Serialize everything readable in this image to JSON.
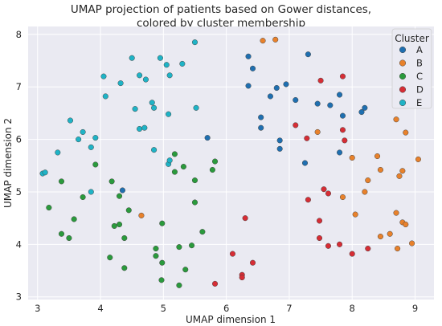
{
  "chart_data": {
    "type": "scatter",
    "title_lines": [
      "UMAP projection of patients based on Gower distances,",
      "colored by cluster membership"
    ],
    "xlabel": "UMAP dimension 1",
    "ylabel": "UMAP dimension 2",
    "xlim": [
      2.85,
      9.3
    ],
    "ylim": [
      2.95,
      8.15
    ],
    "xticks": [
      "3",
      "4",
      "5",
      "6",
      "7",
      "8",
      "9"
    ],
    "yticks": [
      "3",
      "4",
      "5",
      "6",
      "7",
      "8"
    ],
    "grid": true,
    "legend": {
      "title": "Cluster",
      "placement": "top-right"
    },
    "series": [
      {
        "name": "A",
        "color": "#1f6fb0",
        "points": [
          [
            6.35,
            7.58
          ],
          [
            6.42,
            7.35
          ],
          [
            6.35,
            7.02
          ],
          [
            6.55,
            6.42
          ],
          [
            6.55,
            6.22
          ],
          [
            6.7,
            6.82
          ],
          [
            6.8,
            6.98
          ],
          [
            6.95,
            7.05
          ],
          [
            7.1,
            6.75
          ],
          [
            7.3,
            7.62
          ],
          [
            7.45,
            6.68
          ],
          [
            7.65,
            6.65
          ],
          [
            7.8,
            6.85
          ],
          [
            7.85,
            6.45
          ],
          [
            8.15,
            6.52
          ],
          [
            8.2,
            6.6
          ],
          [
            6.85,
            5.98
          ],
          [
            6.85,
            5.82
          ],
          [
            7.25,
            5.55
          ],
          [
            7.8,
            5.75
          ],
          [
            5.7,
            6.03
          ],
          [
            4.35,
            5.03
          ]
        ]
      },
      {
        "name": "B",
        "color": "#e8812b",
        "points": [
          [
            6.58,
            7.88
          ],
          [
            6.78,
            7.9
          ],
          [
            7.45,
            6.14
          ],
          [
            8.0,
            5.65
          ],
          [
            8.4,
            5.68
          ],
          [
            8.45,
            5.42
          ],
          [
            8.7,
            6.38
          ],
          [
            8.85,
            6.13
          ],
          [
            9.05,
            5.62
          ],
          [
            8.75,
            5.3
          ],
          [
            8.8,
            5.4
          ],
          [
            8.25,
            5.22
          ],
          [
            8.2,
            5.0
          ],
          [
            7.85,
            4.9
          ],
          [
            8.05,
            4.57
          ],
          [
            8.7,
            4.6
          ],
          [
            8.8,
            4.42
          ],
          [
            8.85,
            4.38
          ],
          [
            8.95,
            4.02
          ],
          [
            8.6,
            4.2
          ],
          [
            8.45,
            4.15
          ],
          [
            8.72,
            3.92
          ],
          [
            4.65,
            4.55
          ]
        ]
      },
      {
        "name": "C",
        "color": "#2a9a3c",
        "points": [
          [
            3.38,
            5.2
          ],
          [
            3.18,
            4.7
          ],
          [
            3.58,
            4.48
          ],
          [
            3.72,
            4.9
          ],
          [
            3.92,
            5.52
          ],
          [
            4.18,
            5.2
          ],
          [
            4.3,
            4.92
          ],
          [
            4.22,
            4.35
          ],
          [
            4.3,
            4.38
          ],
          [
            4.38,
            4.12
          ],
          [
            4.15,
            3.75
          ],
          [
            4.38,
            3.55
          ],
          [
            4.45,
            4.65
          ],
          [
            3.38,
            4.2
          ],
          [
            3.5,
            4.12
          ],
          [
            4.88,
            3.92
          ],
          [
            4.88,
            3.78
          ],
          [
            4.98,
            3.65
          ],
          [
            4.98,
            4.4
          ],
          [
            4.97,
            3.32
          ],
          [
            5.25,
            3.95
          ],
          [
            5.35,
            3.52
          ],
          [
            5.45,
            3.98
          ],
          [
            5.25,
            3.22
          ],
          [
            5.18,
            5.72
          ],
          [
            5.18,
            5.38
          ],
          [
            5.32,
            5.48
          ],
          [
            5.5,
            5.22
          ],
          [
            5.5,
            4.8
          ],
          [
            5.62,
            4.24
          ],
          [
            5.78,
            5.42
          ],
          [
            5.82,
            5.58
          ]
        ]
      },
      {
        "name": "D",
        "color": "#d62d35",
        "points": [
          [
            7.5,
            7.12
          ],
          [
            7.85,
            7.2
          ],
          [
            7.1,
            6.27
          ],
          [
            7.28,
            6.02
          ],
          [
            7.85,
            6.18
          ],
          [
            7.88,
            5.98
          ],
          [
            7.55,
            5.05
          ],
          [
            7.62,
            4.97
          ],
          [
            7.3,
            4.85
          ],
          [
            7.48,
            4.45
          ],
          [
            7.48,
            4.12
          ],
          [
            7.62,
            3.97
          ],
          [
            7.8,
            4.0
          ],
          [
            8.0,
            3.82
          ],
          [
            8.25,
            3.92
          ],
          [
            6.3,
            4.5
          ],
          [
            6.1,
            3.82
          ],
          [
            6.25,
            3.42
          ],
          [
            6.25,
            3.37
          ],
          [
            6.42,
            3.65
          ],
          [
            5.82,
            3.25
          ]
        ]
      },
      {
        "name": "E",
        "color": "#1fb3c6",
        "points": [
          [
            3.08,
            5.35
          ],
          [
            3.12,
            5.37
          ],
          [
            3.32,
            5.75
          ],
          [
            3.52,
            6.36
          ],
          [
            3.65,
            6.0
          ],
          [
            3.72,
            6.14
          ],
          [
            3.85,
            5.85
          ],
          [
            3.92,
            6.03
          ],
          [
            3.85,
            5.0
          ],
          [
            4.05,
            7.2
          ],
          [
            4.08,
            6.82
          ],
          [
            4.32,
            7.07
          ],
          [
            4.5,
            7.55
          ],
          [
            4.62,
            7.22
          ],
          [
            4.72,
            7.14
          ],
          [
            4.55,
            6.58
          ],
          [
            4.82,
            6.7
          ],
          [
            4.85,
            6.6
          ],
          [
            4.85,
            5.8
          ],
          [
            4.95,
            7.55
          ],
          [
            5.05,
            7.42
          ],
          [
            5.1,
            7.22
          ],
          [
            5.3,
            7.44
          ],
          [
            5.5,
            7.85
          ],
          [
            5.52,
            6.6
          ],
          [
            5.08,
            6.48
          ],
          [
            5.08,
            5.53
          ],
          [
            4.62,
            6.2
          ],
          [
            4.7,
            6.22
          ],
          [
            5.1,
            5.6
          ]
        ]
      }
    ]
  }
}
